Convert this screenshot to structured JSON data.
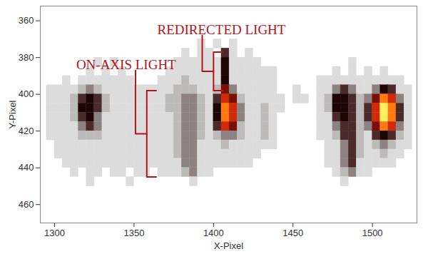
{
  "chart_data": {
    "type": "heatmap",
    "x_label": "X-Pixel",
    "y_label": "Y-Pixel",
    "xlim": [
      1291,
      1528
    ],
    "ylim": [
      352,
      470
    ],
    "xticks": [
      1300,
      1350,
      1400,
      1450,
      1500
    ],
    "yticks": [
      360,
      380,
      400,
      420,
      440,
      460
    ],
    "zlim": [
      0,
      9
    ],
    "x_edges": [
      1295,
      1300,
      1305,
      1310,
      1315,
      1320,
      1325,
      1330,
      1335,
      1340,
      1345,
      1350,
      1355,
      1360,
      1365,
      1370,
      1375,
      1380,
      1385,
      1390,
      1395,
      1400,
      1405,
      1410,
      1415,
      1420,
      1425,
      1430,
      1435,
      1440,
      1445,
      1450,
      1455,
      1460,
      1465,
      1470,
      1475,
      1480,
      1485,
      1490,
      1495,
      1500,
      1505,
      1510,
      1515,
      1520,
      1525
    ],
    "y_edges": [
      370,
      375,
      380,
      385,
      390,
      395,
      400,
      405,
      410,
      415,
      420,
      425,
      430,
      435,
      440,
      445,
      450
    ],
    "z": [
      [
        0,
        0,
        0,
        0,
        0,
        0,
        0,
        0,
        0,
        0,
        0,
        0,
        0,
        0,
        0,
        0,
        0,
        0,
        0,
        1,
        0,
        1,
        0,
        1,
        0,
        0,
        0,
        0,
        0,
        0,
        0,
        0,
        0,
        0,
        0,
        0,
        0,
        0,
        0,
        0,
        0,
        0,
        0,
        0,
        0,
        0
      ],
      [
        0,
        0,
        0,
        0,
        0,
        0,
        0,
        0,
        0,
        0,
        0,
        0,
        0,
        0,
        0,
        0,
        0,
        1,
        0,
        1,
        1,
        0,
        4,
        1,
        0,
        1,
        0,
        0,
        0,
        0,
        0,
        0,
        0,
        0,
        0,
        0,
        0,
        0,
        0,
        0,
        0,
        0,
        0,
        0,
        0,
        0
      ],
      [
        0,
        0,
        0,
        0,
        0,
        0,
        1,
        0,
        1,
        0,
        0,
        0,
        0,
        0,
        0,
        0,
        1,
        1,
        1,
        1,
        1,
        1,
        5,
        1,
        1,
        1,
        1,
        0,
        0,
        0,
        0,
        0,
        0,
        0,
        0,
        0,
        0,
        0,
        1,
        0,
        0,
        0,
        0,
        0,
        0,
        0
      ],
      [
        0,
        0,
        0,
        0,
        0,
        1,
        0,
        1,
        0,
        1,
        0,
        0,
        0,
        0,
        0,
        1,
        1,
        1,
        1,
        1,
        1,
        1,
        5,
        1,
        1,
        1,
        1,
        1,
        1,
        0,
        0,
        0,
        0,
        0,
        0,
        0,
        1,
        0,
        1,
        0,
        1,
        0,
        1,
        0,
        0,
        0
      ],
      [
        0,
        0,
        1,
        0,
        1,
        1,
        1,
        1,
        1,
        1,
        1,
        0,
        0,
        0,
        1,
        1,
        1,
        2,
        1,
        1,
        1,
        1,
        5,
        1,
        1,
        1,
        1,
        1,
        1,
        0,
        0,
        0,
        0,
        0,
        1,
        1,
        1,
        1,
        1,
        1,
        1,
        1,
        1,
        1,
        1,
        0
      ],
      [
        1,
        1,
        1,
        1,
        2,
        3,
        2,
        1,
        1,
        1,
        1,
        1,
        1,
        1,
        1,
        1,
        2,
        2,
        2,
        1,
        1,
        2,
        6,
        3,
        1,
        1,
        1,
        1,
        1,
        0,
        0,
        1,
        0,
        0,
        1,
        1,
        3,
        4,
        3,
        1,
        1,
        3,
        5,
        4,
        1,
        1
      ],
      [
        1,
        1,
        1,
        2,
        4,
        5,
        4,
        2,
        1,
        1,
        1,
        1,
        1,
        1,
        1,
        2,
        2,
        3,
        3,
        2,
        1,
        4,
        7,
        6,
        2,
        1,
        1,
        1,
        1,
        1,
        0,
        1,
        1,
        0,
        1,
        2,
        5,
        5,
        4,
        2,
        3,
        6,
        8,
        7,
        3,
        1
      ],
      [
        1,
        1,
        1,
        2,
        5,
        5,
        4,
        2,
        1,
        1,
        1,
        1,
        1,
        1,
        1,
        2,
        2,
        3,
        3,
        2,
        1,
        5,
        8,
        7,
        3,
        1,
        1,
        2,
        1,
        1,
        0,
        0,
        0,
        0,
        1,
        2,
        5,
        5,
        4,
        2,
        4,
        7,
        9,
        8,
        4,
        1
      ],
      [
        1,
        1,
        1,
        2,
        4,
        5,
        3,
        1,
        1,
        1,
        1,
        1,
        1,
        1,
        1,
        1,
        2,
        3,
        3,
        2,
        1,
        5,
        8,
        7,
        3,
        1,
        1,
        2,
        1,
        0,
        0,
        0,
        0,
        0,
        1,
        1,
        4,
        5,
        4,
        2,
        4,
        7,
        9,
        8,
        4,
        1
      ],
      [
        1,
        1,
        1,
        1,
        3,
        4,
        3,
        1,
        1,
        1,
        1,
        1,
        1,
        1,
        1,
        1,
        2,
        3,
        3,
        2,
        1,
        4,
        7,
        6,
        2,
        1,
        1,
        2,
        1,
        0,
        0,
        0,
        0,
        0,
        1,
        1,
        3,
        4,
        4,
        2,
        3,
        6,
        8,
        7,
        3,
        1
      ],
      [
        1,
        1,
        1,
        1,
        2,
        2,
        2,
        1,
        1,
        1,
        1,
        1,
        1,
        1,
        1,
        1,
        2,
        3,
        3,
        2,
        1,
        2,
        3,
        3,
        2,
        1,
        1,
        2,
        1,
        0,
        0,
        0,
        0,
        0,
        1,
        1,
        2,
        4,
        4,
        2,
        1,
        4,
        5,
        4,
        2,
        1
      ],
      [
        0,
        1,
        1,
        1,
        1,
        1,
        1,
        1,
        1,
        1,
        1,
        1,
        1,
        1,
        1,
        1,
        2,
        3,
        3,
        1,
        1,
        1,
        2,
        1,
        1,
        1,
        1,
        1,
        1,
        0,
        0,
        0,
        0,
        0,
        0,
        1,
        1,
        3,
        4,
        2,
        1,
        2,
        3,
        2,
        1,
        1
      ],
      [
        0,
        1,
        1,
        1,
        1,
        1,
        1,
        1,
        1,
        1,
        1,
        1,
        1,
        1,
        1,
        1,
        2,
        3,
        3,
        1,
        1,
        1,
        1,
        1,
        1,
        1,
        1,
        0,
        0,
        0,
        0,
        0,
        0,
        0,
        0,
        1,
        1,
        3,
        4,
        2,
        1,
        1,
        2,
        1,
        1,
        0
      ],
      [
        0,
        0,
        1,
        1,
        1,
        1,
        1,
        1,
        1,
        1,
        1,
        1,
        1,
        1,
        1,
        1,
        1,
        3,
        3,
        1,
        1,
        1,
        1,
        1,
        1,
        1,
        0,
        0,
        0,
        0,
        0,
        0,
        0,
        0,
        0,
        1,
        1,
        3,
        4,
        1,
        1,
        1,
        1,
        1,
        0,
        0
      ],
      [
        0,
        0,
        0,
        1,
        0,
        1,
        1,
        0,
        1,
        1,
        0,
        1,
        1,
        0,
        1,
        1,
        1,
        2,
        3,
        1,
        1,
        0,
        0,
        0,
        0,
        0,
        0,
        0,
        0,
        0,
        0,
        0,
        0,
        0,
        0,
        0,
        1,
        2,
        3,
        1,
        1,
        0,
        0,
        0,
        0,
        0
      ],
      [
        0,
        0,
        0,
        0,
        0,
        1,
        0,
        0,
        0,
        0,
        1,
        0,
        0,
        0,
        0,
        0,
        0,
        0,
        1,
        0,
        0,
        0,
        0,
        0,
        0,
        0,
        0,
        0,
        0,
        0,
        0,
        0,
        0,
        0,
        0,
        0,
        0,
        1,
        0,
        0,
        0,
        0,
        0,
        0,
        0,
        0
      ]
    ],
    "annotations": [
      {
        "text": "ON-AXIS LIGHT",
        "x": 1345,
        "y": 387,
        "bracket": {
          "x": 1358,
          "y": [
            398,
            445
          ]
        },
        "color": "#b5121b"
      },
      {
        "text": "REDIRECTED LIGHT",
        "x": 1405,
        "y": 368,
        "bracket": {
          "x": 1400,
          "y": [
            377,
            398
          ]
        },
        "color": "#b5121b"
      }
    ]
  }
}
